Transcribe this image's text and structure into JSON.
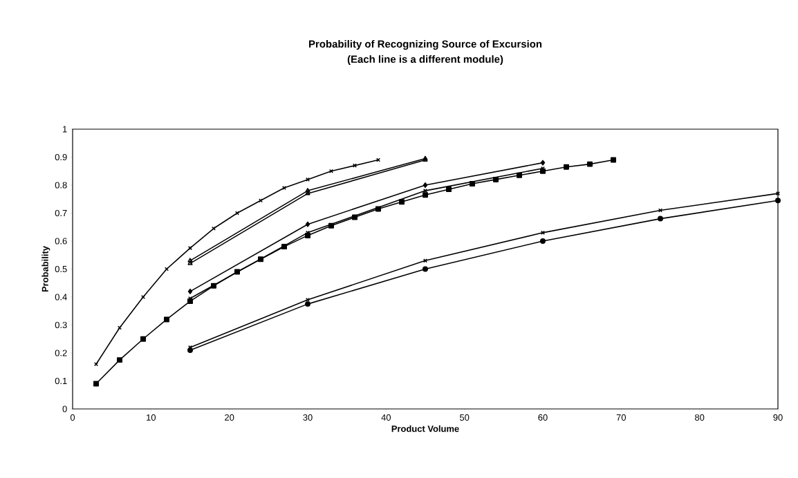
{
  "chart_data": {
    "type": "line",
    "title": "Probability of Recognizing Source of Excursion",
    "subtitle": "(Each line is a different module)",
    "xlabel": "Product Volume",
    "ylabel": "Probability",
    "xlim": [
      0,
      90
    ],
    "ylim": [
      0,
      1
    ],
    "xticks": [
      0,
      10,
      20,
      30,
      40,
      50,
      60,
      70,
      80,
      90
    ],
    "yticks": [
      0,
      0.1,
      0.2,
      0.3,
      0.4,
      0.5,
      0.6,
      0.7,
      0.8,
      0.9,
      1
    ],
    "grid": false,
    "series": [
      {
        "color": "#000000",
        "marker": "cross",
        "x": [
          3,
          6,
          9,
          12,
          15,
          18,
          21,
          24,
          27,
          30,
          33,
          36,
          39
        ],
        "values": [
          0.16,
          0.29,
          0.4,
          0.5,
          0.575,
          0.645,
          0.7,
          0.745,
          0.79,
          0.82,
          0.85,
          0.87,
          0.89
        ]
      },
      {
        "color": "#000000",
        "marker": "square",
        "x": [
          3,
          6,
          9,
          12,
          15,
          18,
          21,
          24,
          27,
          30,
          33,
          36,
          39,
          42,
          45,
          48,
          51,
          54,
          57,
          60,
          63,
          66,
          69
        ],
        "values": [
          0.09,
          0.175,
          0.25,
          0.32,
          0.385,
          0.44,
          0.49,
          0.535,
          0.58,
          0.62,
          0.655,
          0.685,
          0.715,
          0.74,
          0.765,
          0.785,
          0.805,
          0.82,
          0.835,
          0.85,
          0.865,
          0.875,
          0.89
        ]
      },
      {
        "color": "#000000",
        "marker": "triangle",
        "x": [
          15,
          30,
          45
        ],
        "values": [
          0.53,
          0.78,
          0.895
        ]
      },
      {
        "color": "#000000",
        "marker": "triangle",
        "x": [
          15,
          30,
          45
        ],
        "values": [
          0.52,
          0.77,
          0.89
        ]
      },
      {
        "color": "#000000",
        "marker": "diamond",
        "x": [
          15,
          30,
          45,
          60
        ],
        "values": [
          0.42,
          0.66,
          0.8,
          0.88
        ]
      },
      {
        "color": "#000000",
        "marker": "cross",
        "x": [
          15,
          30,
          45,
          60,
          75,
          90
        ],
        "values": [
          0.22,
          0.39,
          0.53,
          0.63,
          0.71,
          0.77
        ]
      },
      {
        "color": "#000000",
        "marker": "circle",
        "x": [
          15,
          30,
          45,
          60,
          75,
          90
        ],
        "values": [
          0.21,
          0.375,
          0.5,
          0.6,
          0.68,
          0.745
        ]
      },
      {
        "color": "#000000",
        "marker": "cross",
        "x": [
          15,
          30,
          45,
          60
        ],
        "values": [
          0.395,
          0.63,
          0.78,
          0.86
        ]
      }
    ]
  }
}
